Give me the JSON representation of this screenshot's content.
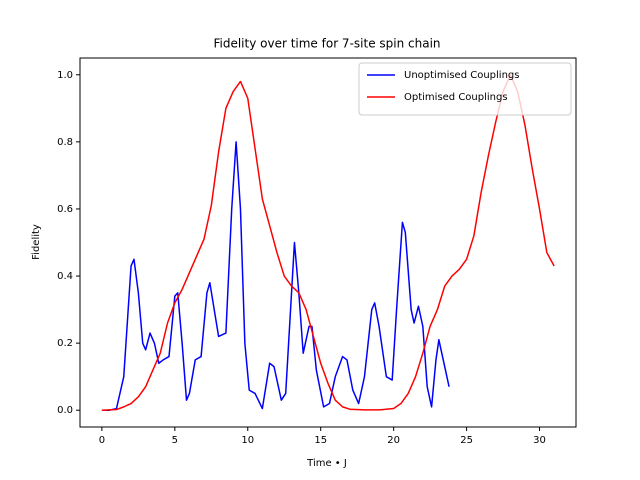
{
  "chart_data": {
    "type": "line",
    "title": "Fidelity over time for 7-site spin chain",
    "xlabel": "Time • J",
    "ylabel": "Fidelity",
    "xlim": [
      -1.5,
      32.5
    ],
    "ylim": [
      -0.05,
      1.05
    ],
    "xticks": [
      0,
      5,
      10,
      15,
      20,
      25,
      30
    ],
    "yticks": [
      {
        "value": 0,
        "label": "0.0"
      },
      0.2,
      0.4,
      0.6,
      0.8,
      {
        "value": 1,
        "label": "1.0"
      }
    ],
    "legend": "upper right",
    "series": [
      {
        "name": "Unoptimised Couplings",
        "color": "#0000ff",
        "x": [
          0,
          0.5,
          1,
          1.5,
          2,
          2.2,
          2.5,
          2.8,
          3,
          3.3,
          3.6,
          3.9,
          4.2,
          4.6,
          5,
          5.2,
          5.5,
          5.8,
          6,
          6.4,
          6.8,
          7.2,
          7.4,
          7.7,
          8,
          8.5,
          8.9,
          9.2,
          9.5,
          9.8,
          10.1,
          10.5,
          11,
          11.5,
          11.8,
          12.3,
          12.6,
          13,
          13.2,
          13.5,
          13.8,
          14.2,
          14.4,
          14.7,
          15.2,
          15.6,
          16,
          16.5,
          16.8,
          17.2,
          17.6,
          18,
          18.5,
          18.7,
          19,
          19.5,
          19.9,
          20.2,
          20.6,
          20.8,
          21.2,
          21.4,
          21.7,
          22,
          22.3,
          22.6,
          22.9,
          23.1,
          23.4,
          23.8
        ],
        "values": [
          0,
          0,
          0.005,
          0.1,
          0.43,
          0.45,
          0.35,
          0.2,
          0.18,
          0.23,
          0.2,
          0.14,
          0.15,
          0.16,
          0.34,
          0.35,
          0.2,
          0.03,
          0.05,
          0.15,
          0.16,
          0.35,
          0.38,
          0.3,
          0.22,
          0.23,
          0.6,
          0.8,
          0.6,
          0.2,
          0.06,
          0.05,
          0.005,
          0.14,
          0.13,
          0.03,
          0.05,
          0.35,
          0.5,
          0.35,
          0.17,
          0.25,
          0.25,
          0.12,
          0.01,
          0.02,
          0.1,
          0.16,
          0.15,
          0.06,
          0.02,
          0.1,
          0.3,
          0.32,
          0.25,
          0.1,
          0.09,
          0.3,
          0.56,
          0.53,
          0.3,
          0.26,
          0.31,
          0.25,
          0.07,
          0.01,
          0.15,
          0.21,
          0.15,
          0.07
        ]
      },
      {
        "name": "Optimised Couplings",
        "color": "#ff0000",
        "x": [
          0,
          1,
          1.5,
          2,
          2.5,
          3,
          3.5,
          4,
          4.5,
          5,
          5.5,
          6,
          6.5,
          7,
          7.5,
          8,
          8.5,
          9,
          9.5,
          10,
          10.5,
          11,
          11.5,
          12,
          12.5,
          13,
          13.5,
          14,
          14.5,
          15,
          15.5,
          16,
          16.5,
          17,
          18,
          19,
          20,
          20.5,
          21,
          21.5,
          22,
          22.5,
          23,
          23.5,
          24,
          24.5,
          25,
          25.5,
          26,
          26.5,
          27,
          27.5,
          28,
          28.5,
          29,
          29.5,
          30,
          30.5,
          31
        ],
        "values": [
          0,
          0.002,
          0.01,
          0.02,
          0.04,
          0.07,
          0.12,
          0.17,
          0.26,
          0.32,
          0.36,
          0.41,
          0.46,
          0.51,
          0.61,
          0.77,
          0.9,
          0.95,
          0.98,
          0.93,
          0.78,
          0.63,
          0.55,
          0.47,
          0.4,
          0.37,
          0.35,
          0.3,
          0.22,
          0.14,
          0.08,
          0.03,
          0.01,
          0.003,
          0.001,
          0.001,
          0.005,
          0.02,
          0.05,
          0.1,
          0.17,
          0.25,
          0.3,
          0.37,
          0.4,
          0.42,
          0.45,
          0.52,
          0.65,
          0.76,
          0.86,
          0.95,
          1.0,
          0.95,
          0.85,
          0.72,
          0.6,
          0.47,
          0.43
        ]
      }
    ]
  }
}
